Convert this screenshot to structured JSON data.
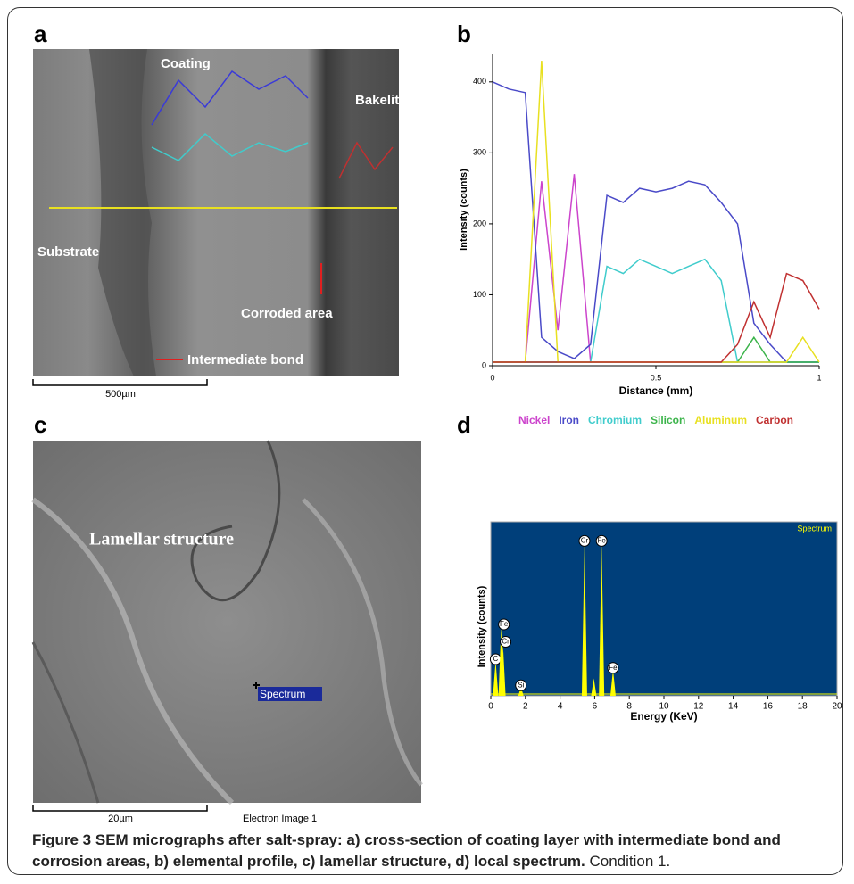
{
  "panels": {
    "a": {
      "label": "a",
      "annotations": [
        "Coating",
        "Bakelite",
        "Substrate",
        "Corroded area",
        "Intermediate bond"
      ],
      "scale_bar": "500µm"
    },
    "b": {
      "label": "b"
    },
    "c": {
      "label": "c",
      "annotations": [
        "Lamellar structure",
        "Spectrum"
      ],
      "scale_bar": "20µm",
      "image_label": "Electron Image 1"
    },
    "d": {
      "label": "d"
    }
  },
  "chart_data": [
    {
      "type": "line",
      "ylabel": "Intensity (counts)",
      "xlabel": "Distance (mm)",
      "x": [
        0,
        0.05,
        0.1,
        0.15,
        0.2,
        0.25,
        0.3,
        0.35,
        0.4,
        0.45,
        0.5,
        0.55,
        0.6,
        0.65,
        0.7,
        0.75,
        0.8,
        0.85,
        0.9,
        0.95,
        1
      ],
      "xlim": [
        0,
        1
      ],
      "xticks": [
        0,
        0.5,
        1
      ],
      "ylim": [
        0,
        440
      ],
      "yticks": [
        0,
        100,
        200,
        300,
        400
      ],
      "series": [
        {
          "name": "Nickel",
          "color": "#cc44cc",
          "values": [
            5,
            5,
            5,
            260,
            50,
            270,
            5,
            5,
            5,
            5,
            5,
            5,
            5,
            5,
            5,
            5,
            5,
            5,
            5,
            5,
            5
          ]
        },
        {
          "name": "Iron",
          "color": "#4a4ac8",
          "values": [
            400,
            390,
            385,
            40,
            20,
            10,
            30,
            240,
            230,
            250,
            245,
            250,
            260,
            255,
            230,
            200,
            60,
            30,
            5,
            5,
            5
          ]
        },
        {
          "name": "Chromium",
          "color": "#40cccc",
          "values": [
            5,
            5,
            5,
            5,
            5,
            5,
            5,
            140,
            130,
            150,
            140,
            130,
            140,
            150,
            120,
            5,
            5,
            5,
            5,
            5,
            5
          ]
        },
        {
          "name": "Silicon",
          "color": "#3cb44b",
          "values": [
            5,
            5,
            5,
            5,
            5,
            5,
            5,
            5,
            5,
            5,
            5,
            5,
            5,
            5,
            5,
            5,
            40,
            5,
            5,
            5,
            5
          ]
        },
        {
          "name": "Aluminum",
          "color": "#e8e020",
          "values": [
            5,
            5,
            5,
            430,
            5,
            5,
            5,
            5,
            5,
            5,
            5,
            5,
            5,
            5,
            5,
            5,
            5,
            5,
            5,
            40,
            5
          ]
        },
        {
          "name": "Carbon",
          "color": "#c03030",
          "values": [
            5,
            5,
            5,
            5,
            5,
            5,
            5,
            5,
            5,
            5,
            5,
            5,
            5,
            5,
            5,
            30,
            90,
            40,
            130,
            120,
            80
          ]
        }
      ]
    },
    {
      "type": "spectrum",
      "ylabel": "Intensity (counts)",
      "xlabel": "Energy (KeV)",
      "x": [
        0.28,
        0.6,
        0.7,
        1.74,
        5.41,
        5.95,
        6.4,
        7.06
      ],
      "xlim": [
        0,
        20
      ],
      "xticks": [
        0,
        2,
        4,
        6,
        8,
        10,
        12,
        14,
        16,
        18,
        20
      ],
      "ylim": [
        0,
        100
      ],
      "background": "#003f7a",
      "series": [
        {
          "name": "Spectrum",
          "color": "#ffff00",
          "values": [
            20,
            40,
            30,
            5,
            88,
            10,
            88,
            15
          ]
        }
      ],
      "peak_labels": [
        "C",
        "Fe",
        "Cr",
        "Si",
        "Cr",
        null,
        "Fe",
        "Fe"
      ]
    }
  ],
  "caption": {
    "figure": "Figure 3",
    "title": "SEM micrographs after salt-spray: a) cross-section of coating layer with intermediate bond and corrosion areas, b) elemental profile, c) lamellar structure, d) local spectrum.",
    "note": "Condition 1."
  }
}
